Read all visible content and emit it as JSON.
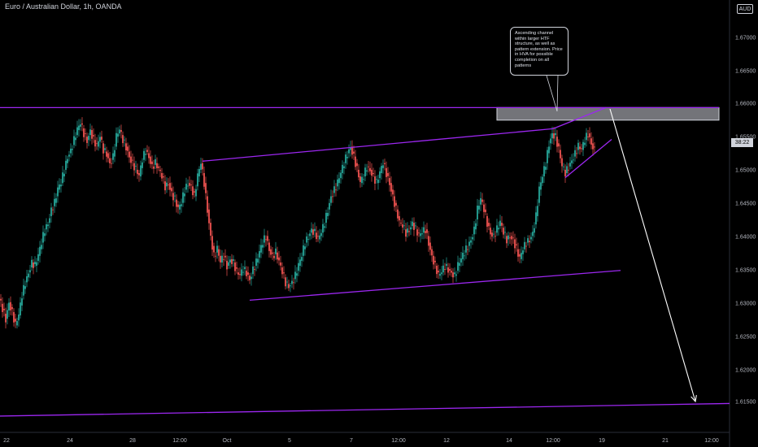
{
  "header": {
    "title": "Euro / Australian Dollar, 1h, OANDA",
    "currency": "AUD",
    "last_price_tag": "38:22"
  },
  "annotation": {
    "text": "Ascending channel within larger HTF structure, as well as pattern extension. Price in HVA for possible completion on all patterns"
  },
  "colors": {
    "background": "#000000",
    "up_candle": "#26a69a",
    "down_candle": "#ef5350",
    "trendline": "#9c27f0",
    "zone": "#d1d4dc",
    "arrow": "#ffffff"
  },
  "chart_data": {
    "type": "candlestick",
    "title": "Euro / Australian Dollar, 1h, OANDA",
    "y_axis": {
      "ylim": [
        1.6105,
        1.677
      ],
      "ticks": [
        "1.61500",
        "1.62000",
        "1.62500",
        "1.63000",
        "1.63500",
        "1.64000",
        "1.64500",
        "1.65000",
        "1.65500",
        "1.66000",
        "1.66500",
        "1.67000"
      ]
    },
    "x_axis": {
      "ticks": [
        "22",
        "24",
        "28",
        "12:00",
        "Oct",
        "5",
        "7",
        "12:00",
        "12",
        "14",
        "12:00",
        "19",
        "21",
        "12:00"
      ]
    },
    "price_path": [
      [
        0,
        1.6305
      ],
      [
        4,
        1.629
      ],
      [
        8,
        1.6275
      ],
      [
        12,
        1.63
      ],
      [
        16,
        1.6285
      ],
      [
        20,
        1.6265
      ],
      [
        24,
        1.628
      ],
      [
        28,
        1.631
      ],
      [
        32,
        1.633
      ],
      [
        36,
        1.6345
      ],
      [
        40,
        1.636
      ],
      [
        44,
        1.6355
      ],
      [
        48,
        1.637
      ],
      [
        52,
        1.639
      ],
      [
        56,
        1.641
      ],
      [
        60,
        1.642
      ],
      [
        64,
        1.644
      ],
      [
        68,
        1.645
      ],
      [
        72,
        1.647
      ],
      [
        76,
        1.648
      ],
      [
        80,
        1.65
      ],
      [
        84,
        1.652
      ],
      [
        88,
        1.653
      ],
      [
        92,
        1.6545
      ],
      [
        96,
        1.656
      ],
      [
        100,
        1.657
      ],
      [
        104,
        1.6555
      ],
      [
        108,
        1.6545
      ],
      [
        112,
        1.656
      ],
      [
        116,
        1.6545
      ],
      [
        120,
        1.6535
      ],
      [
        124,
        1.655
      ],
      [
        128,
        1.653
      ],
      [
        132,
        1.6525
      ],
      [
        136,
        1.651
      ],
      [
        140,
        1.652
      ],
      [
        144,
        1.655
      ],
      [
        148,
        1.656
      ],
      [
        152,
        1.6545
      ],
      [
        156,
        1.6535
      ],
      [
        160,
        1.652
      ],
      [
        164,
        1.651
      ],
      [
        168,
        1.65
      ],
      [
        172,
        1.649
      ],
      [
        176,
        1.6515
      ],
      [
        180,
        1.653
      ],
      [
        184,
        1.652
      ],
      [
        188,
        1.6505
      ],
      [
        192,
        1.651
      ],
      [
        196,
        1.65
      ],
      [
        200,
        1.649
      ],
      [
        204,
        1.6475
      ],
      [
        208,
        1.648
      ],
      [
        212,
        1.6465
      ],
      [
        216,
        1.6455
      ],
      [
        220,
        1.644
      ],
      [
        224,
        1.645
      ],
      [
        228,
        1.647
      ],
      [
        232,
        1.648
      ],
      [
        236,
        1.6475
      ],
      [
        240,
        1.646
      ],
      [
        244,
        1.649
      ],
      [
        248,
        1.651
      ],
      [
        252,
        1.648
      ],
      [
        256,
        1.644
      ],
      [
        260,
        1.64
      ],
      [
        264,
        1.637
      ],
      [
        268,
        1.638
      ],
      [
        272,
        1.636
      ],
      [
        276,
        1.637
      ],
      [
        280,
        1.6355
      ],
      [
        284,
        1.6365
      ],
      [
        288,
        1.636
      ],
      [
        292,
        1.6345
      ],
      [
        296,
        1.634
      ],
      [
        300,
        1.635
      ],
      [
        304,
        1.6345
      ],
      [
        308,
        1.6335
      ],
      [
        312,
        1.635
      ],
      [
        316,
        1.636
      ],
      [
        320,
        1.6375
      ],
      [
        324,
        1.639
      ],
      [
        328,
        1.64
      ],
      [
        332,
        1.638
      ],
      [
        336,
        1.637
      ],
      [
        340,
        1.6375
      ],
      [
        344,
        1.636
      ],
      [
        348,
        1.6345
      ],
      [
        352,
        1.633
      ],
      [
        356,
        1.6325
      ],
      [
        360,
        1.633
      ],
      [
        364,
        1.634
      ],
      [
        368,
        1.6355
      ],
      [
        372,
        1.637
      ],
      [
        376,
        1.639
      ],
      [
        380,
        1.64
      ],
      [
        384,
        1.641
      ],
      [
        388,
        1.6405
      ],
      [
        392,
        1.6395
      ],
      [
        396,
        1.6405
      ],
      [
        400,
        1.642
      ],
      [
        404,
        1.644
      ],
      [
        408,
        1.646
      ],
      [
        412,
        1.647
      ],
      [
        416,
        1.648
      ],
      [
        420,
        1.6495
      ],
      [
        424,
        1.651
      ],
      [
        428,
        1.6525
      ],
      [
        432,
        1.6535
      ],
      [
        436,
        1.652
      ],
      [
        440,
        1.65
      ],
      [
        444,
        1.648
      ],
      [
        448,
        1.649
      ],
      [
        452,
        1.6505
      ],
      [
        456,
        1.65
      ],
      [
        460,
        1.649
      ],
      [
        464,
        1.648
      ],
      [
        468,
        1.6495
      ],
      [
        472,
        1.651
      ],
      [
        476,
        1.6495
      ],
      [
        480,
        1.648
      ],
      [
        484,
        1.646
      ],
      [
        488,
        1.644
      ],
      [
        492,
        1.642
      ],
      [
        496,
        1.6415
      ],
      [
        500,
        1.6405
      ],
      [
        504,
        1.641
      ],
      [
        508,
        1.642
      ],
      [
        512,
        1.641
      ],
      [
        516,
        1.64
      ],
      [
        520,
        1.6405
      ],
      [
        524,
        1.641
      ],
      [
        528,
        1.639
      ],
      [
        532,
        1.637
      ],
      [
        536,
        1.6355
      ],
      [
        540,
        1.634
      ],
      [
        544,
        1.6345
      ],
      [
        548,
        1.6355
      ],
      [
        552,
        1.635
      ],
      [
        556,
        1.6345
      ],
      [
        560,
        1.634
      ],
      [
        564,
        1.6355
      ],
      [
        568,
        1.6365
      ],
      [
        572,
        1.6375
      ],
      [
        576,
        1.6385
      ],
      [
        580,
        1.6395
      ],
      [
        584,
        1.641
      ],
      [
        588,
        1.644
      ],
      [
        592,
        1.6455
      ],
      [
        596,
        1.644
      ],
      [
        600,
        1.642
      ],
      [
        604,
        1.6405
      ],
      [
        608,
        1.64
      ],
      [
        612,
        1.641
      ],
      [
        616,
        1.642
      ],
      [
        620,
        1.6405
      ],
      [
        624,
        1.6395
      ],
      [
        628,
        1.64
      ],
      [
        632,
        1.6395
      ],
      [
        636,
        1.638
      ],
      [
        640,
        1.6365
      ],
      [
        644,
        1.638
      ],
      [
        648,
        1.639
      ],
      [
        652,
        1.6395
      ],
      [
        656,
        1.6405
      ],
      [
        660,
        1.643
      ],
      [
        664,
        1.647
      ],
      [
        668,
        1.649
      ],
      [
        672,
        1.651
      ],
      [
        676,
        1.654
      ],
      [
        680,
        1.6555
      ],
      [
        684,
        1.655
      ],
      [
        688,
        1.653
      ],
      [
        692,
        1.6505
      ],
      [
        696,
        1.6495
      ],
      [
        700,
        1.6505
      ],
      [
        704,
        1.6515
      ],
      [
        708,
        1.6525
      ],
      [
        712,
        1.6535
      ],
      [
        716,
        1.653
      ],
      [
        720,
        1.6545
      ],
      [
        724,
        1.6555
      ],
      [
        728,
        1.654
      ],
      [
        732,
        1.653
      ]
    ],
    "trendlines": [
      {
        "name": "htf-resistance",
        "p1": [
          0,
          1.6594
        ],
        "p2": [
          884,
          1.6594
        ]
      },
      {
        "name": "htf-support",
        "p1": [
          0,
          1.6128
        ],
        "p2": [
          897,
          1.6147
        ]
      },
      {
        "name": "channel-top",
        "p1": [
          249,
          1.6513
        ],
        "p2": [
          680,
          1.6562
        ]
      },
      {
        "name": "channel-bottom",
        "p1": [
          307,
          1.6303
        ],
        "p2": [
          763,
          1.6348
        ]
      },
      {
        "name": "pattern-extension",
        "p1": [
          680,
          1.6562
        ],
        "p2": [
          745,
          1.6594
        ]
      },
      {
        "name": "wedge-lower",
        "p1": [
          695,
          1.6488
        ],
        "p2": [
          752,
          1.6546
        ]
      }
    ],
    "zone": {
      "x1": 611,
      "x2": 884,
      "y_high": 1.6594,
      "y_low": 1.6575
    },
    "projection_arrow": {
      "from": [
        750,
        1.6592
      ],
      "to": [
        855,
        1.615
      ]
    }
  }
}
